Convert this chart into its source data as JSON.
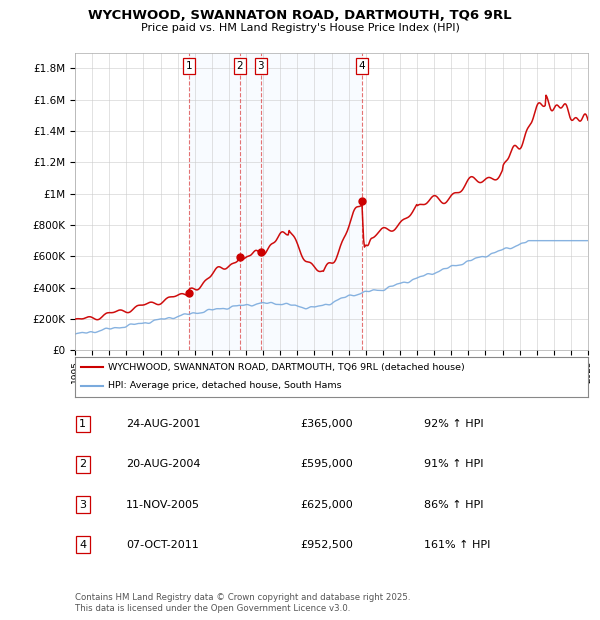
{
  "title": "WYCHWOOD, SWANNATON ROAD, DARTMOUTH, TQ6 9RL",
  "subtitle": "Price paid vs. HM Land Registry's House Price Index (HPI)",
  "legend_property": "WYCHWOOD, SWANNATON ROAD, DARTMOUTH, TQ6 9RL (detached house)",
  "legend_hpi": "HPI: Average price, detached house, South Hams",
  "footer": "Contains HM Land Registry data © Crown copyright and database right 2025.\nThis data is licensed under the Open Government Licence v3.0.",
  "ylim": [
    0,
    1900000
  ],
  "yticks": [
    0,
    200000,
    400000,
    600000,
    800000,
    1000000,
    1200000,
    1400000,
    1600000,
    1800000
  ],
  "ytick_labels": [
    "£0",
    "£200K",
    "£400K",
    "£600K",
    "£800K",
    "£1M",
    "£1.2M",
    "£1.4M",
    "£1.6M",
    "£1.8M"
  ],
  "property_color": "#cc0000",
  "hpi_color": "#7aaadd",
  "vline_color": "#dd4444",
  "highlight_color": "#ddeeff",
  "sales": [
    {
      "num": 1,
      "date_x": 2001.65,
      "price": 365000,
      "label": "24-AUG-2001",
      "price_str": "£365,000",
      "hpi_str": "92% ↑ HPI"
    },
    {
      "num": 2,
      "date_x": 2004.64,
      "price": 595000,
      "label": "20-AUG-2004",
      "price_str": "£595,000",
      "hpi_str": "91% ↑ HPI"
    },
    {
      "num": 3,
      "date_x": 2005.86,
      "price": 625000,
      "label": "11-NOV-2005",
      "price_str": "£625,000",
      "hpi_str": "86% ↑ HPI"
    },
    {
      "num": 4,
      "date_x": 2011.77,
      "price": 952500,
      "label": "07-OCT-2011",
      "price_str": "£952,500",
      "hpi_str": "161% ↑ HPI"
    }
  ],
  "xmin": 1995,
  "xmax": 2025,
  "background_color": "#ffffff",
  "grid_color": "#cccccc"
}
